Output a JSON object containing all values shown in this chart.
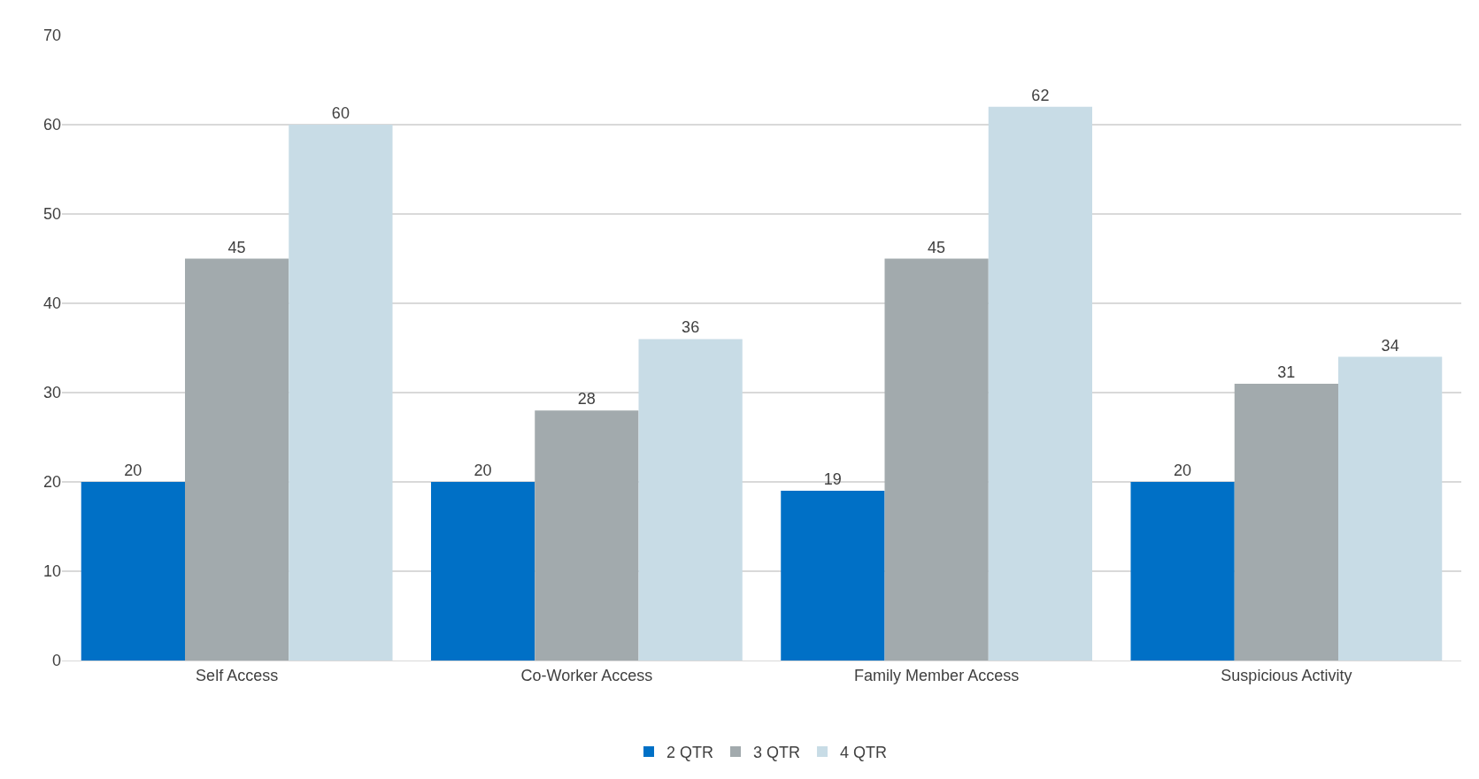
{
  "chart_data": {
    "type": "bar",
    "categories": [
      "Self Access",
      "Co-Worker Access",
      "Family Member Access",
      "Suspicious Activity"
    ],
    "series": [
      {
        "name": "2 QTR",
        "color": "#0070c6",
        "values": [
          20,
          20,
          19,
          20
        ]
      },
      {
        "name": "3 QTR",
        "color": "#a2aaad",
        "values": [
          45,
          28,
          45,
          31
        ]
      },
      {
        "name": "4 QTR",
        "color": "#c8dce6",
        "values": [
          60,
          36,
          62,
          34
        ]
      }
    ],
    "ylim": [
      0,
      70
    ],
    "yticks": [
      0,
      10,
      20,
      30,
      40,
      50,
      60,
      70
    ],
    "grid": "y",
    "legend": "bottom",
    "data_labels": true
  }
}
